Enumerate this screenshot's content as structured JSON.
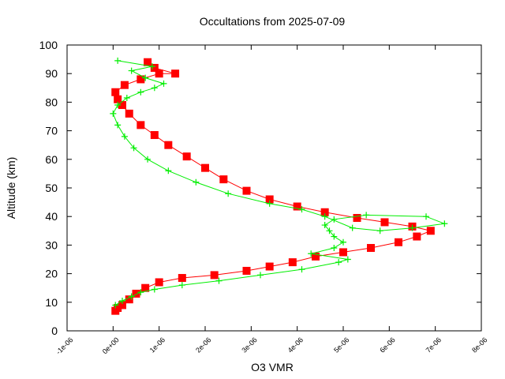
{
  "chart_data": {
    "type": "scatter",
    "title": "Occultations from 2025-07-09",
    "xlabel": "O3 VMR",
    "ylabel": "Altitude (km)",
    "xlim": [
      -1e-06,
      8e-06
    ],
    "ylim": [
      0,
      100
    ],
    "x_ticks": [
      {
        "value": -1e-06,
        "label": "-1e-06"
      },
      {
        "value": 0,
        "label": "0e+00"
      },
      {
        "value": 1e-06,
        "label": "1e-06"
      },
      {
        "value": 2e-06,
        "label": "2e-06"
      },
      {
        "value": 3e-06,
        "label": "3e-06"
      },
      {
        "value": 4e-06,
        "label": "4e-06"
      },
      {
        "value": 5e-06,
        "label": "5e-06"
      },
      {
        "value": 6e-06,
        "label": "6e-06"
      },
      {
        "value": 7e-06,
        "label": "7e-06"
      },
      {
        "value": 8e-06,
        "label": "8e-06"
      }
    ],
    "y_ticks": [
      {
        "value": 0,
        "label": "0"
      },
      {
        "value": 10,
        "label": "10"
      },
      {
        "value": 20,
        "label": "20"
      },
      {
        "value": 30,
        "label": "30"
      },
      {
        "value": 40,
        "label": "40"
      },
      {
        "value": 50,
        "label": "50"
      },
      {
        "value": 60,
        "label": "60"
      },
      {
        "value": 70,
        "label": "70"
      },
      {
        "value": 80,
        "label": "80"
      },
      {
        "value": 90,
        "label": "90"
      },
      {
        "value": 100,
        "label": "100"
      }
    ],
    "grid": false,
    "series": [
      {
        "color": "#ff0000",
        "marker": "square",
        "line": true,
        "points": [
          [
            5e-08,
            7
          ],
          [
            1e-07,
            8
          ],
          [
            2e-07,
            9
          ],
          [
            3.5e-07,
            11
          ],
          [
            5e-07,
            13
          ],
          [
            7e-07,
            15
          ],
          [
            1e-06,
            17
          ],
          [
            1.5e-06,
            18.5
          ],
          [
            2.2e-06,
            19.5
          ],
          [
            2.9e-06,
            21
          ],
          [
            3.4e-06,
            22.5
          ],
          [
            3.9e-06,
            24
          ],
          [
            4.4e-06,
            26
          ],
          [
            5e-06,
            27.5
          ],
          [
            5.6e-06,
            29
          ],
          [
            6.2e-06,
            31
          ],
          [
            6.6e-06,
            33
          ],
          [
            6.9e-06,
            35
          ],
          [
            6.5e-06,
            36.5
          ],
          [
            5.9e-06,
            38
          ],
          [
            5.3e-06,
            39.5
          ],
          [
            4.6e-06,
            41.5
          ],
          [
            4e-06,
            43.5
          ],
          [
            3.4e-06,
            46
          ],
          [
            2.9e-06,
            49
          ],
          [
            2.4e-06,
            53
          ],
          [
            2e-06,
            57
          ],
          [
            1.6e-06,
            61
          ],
          [
            1.2e-06,
            65
          ],
          [
            9e-07,
            68.5
          ],
          [
            6e-07,
            72
          ],
          [
            3.5e-07,
            76
          ],
          [
            2e-07,
            79
          ],
          [
            1e-07,
            81
          ],
          [
            5e-08,
            83.5
          ],
          [
            2.5e-07,
            86
          ],
          [
            6e-07,
            88
          ],
          [
            1e-06,
            90
          ],
          [
            1.35e-06,
            90
          ],
          [
            9e-07,
            92
          ],
          [
            7.5e-07,
            94
          ]
        ]
      },
      {
        "color": "#00ee00",
        "marker": "plus",
        "line": true,
        "points": [
          [
            5e-08,
            9
          ],
          [
            2e-07,
            10.5
          ],
          [
            4e-07,
            12
          ],
          [
            6e-07,
            13.5
          ],
          [
            9e-07,
            14.5
          ],
          [
            1.5e-06,
            16
          ],
          [
            2.3e-06,
            17.5
          ],
          [
            3.2e-06,
            19.5
          ],
          [
            4.1e-06,
            21.5
          ],
          [
            4.9e-06,
            24
          ],
          [
            5.1e-06,
            25
          ],
          [
            4.3e-06,
            27
          ],
          [
            4.8e-06,
            29
          ],
          [
            5e-06,
            31
          ],
          [
            4.8e-06,
            33
          ],
          [
            4.7e-06,
            35
          ],
          [
            4.6e-06,
            37
          ],
          [
            4.8e-06,
            39
          ],
          [
            5.5e-06,
            40.5
          ],
          [
            6.8e-06,
            40
          ],
          [
            7.2e-06,
            37.5
          ],
          [
            6.5e-06,
            36
          ],
          [
            5.8e-06,
            35
          ],
          [
            5.2e-06,
            36
          ],
          [
            4.6e-06,
            40
          ],
          [
            4.1e-06,
            42.5
          ],
          [
            3.4e-06,
            44.5
          ],
          [
            2.5e-06,
            48
          ],
          [
            1.8e-06,
            52
          ],
          [
            1.2e-06,
            56
          ],
          [
            7.5e-07,
            60
          ],
          [
            4.5e-07,
            64
          ],
          [
            2.5e-07,
            68
          ],
          [
            1e-07,
            72
          ],
          [
            0.0,
            76
          ],
          [
            1e-07,
            79
          ],
          [
            3e-07,
            81.5
          ],
          [
            6e-07,
            83.5
          ],
          [
            9e-07,
            85
          ],
          [
            1.1e-06,
            86.5
          ],
          [
            7e-07,
            88.5
          ],
          [
            4e-07,
            91
          ],
          [
            8.5e-07,
            92.5
          ],
          [
            1e-07,
            94.5
          ]
        ]
      }
    ]
  }
}
